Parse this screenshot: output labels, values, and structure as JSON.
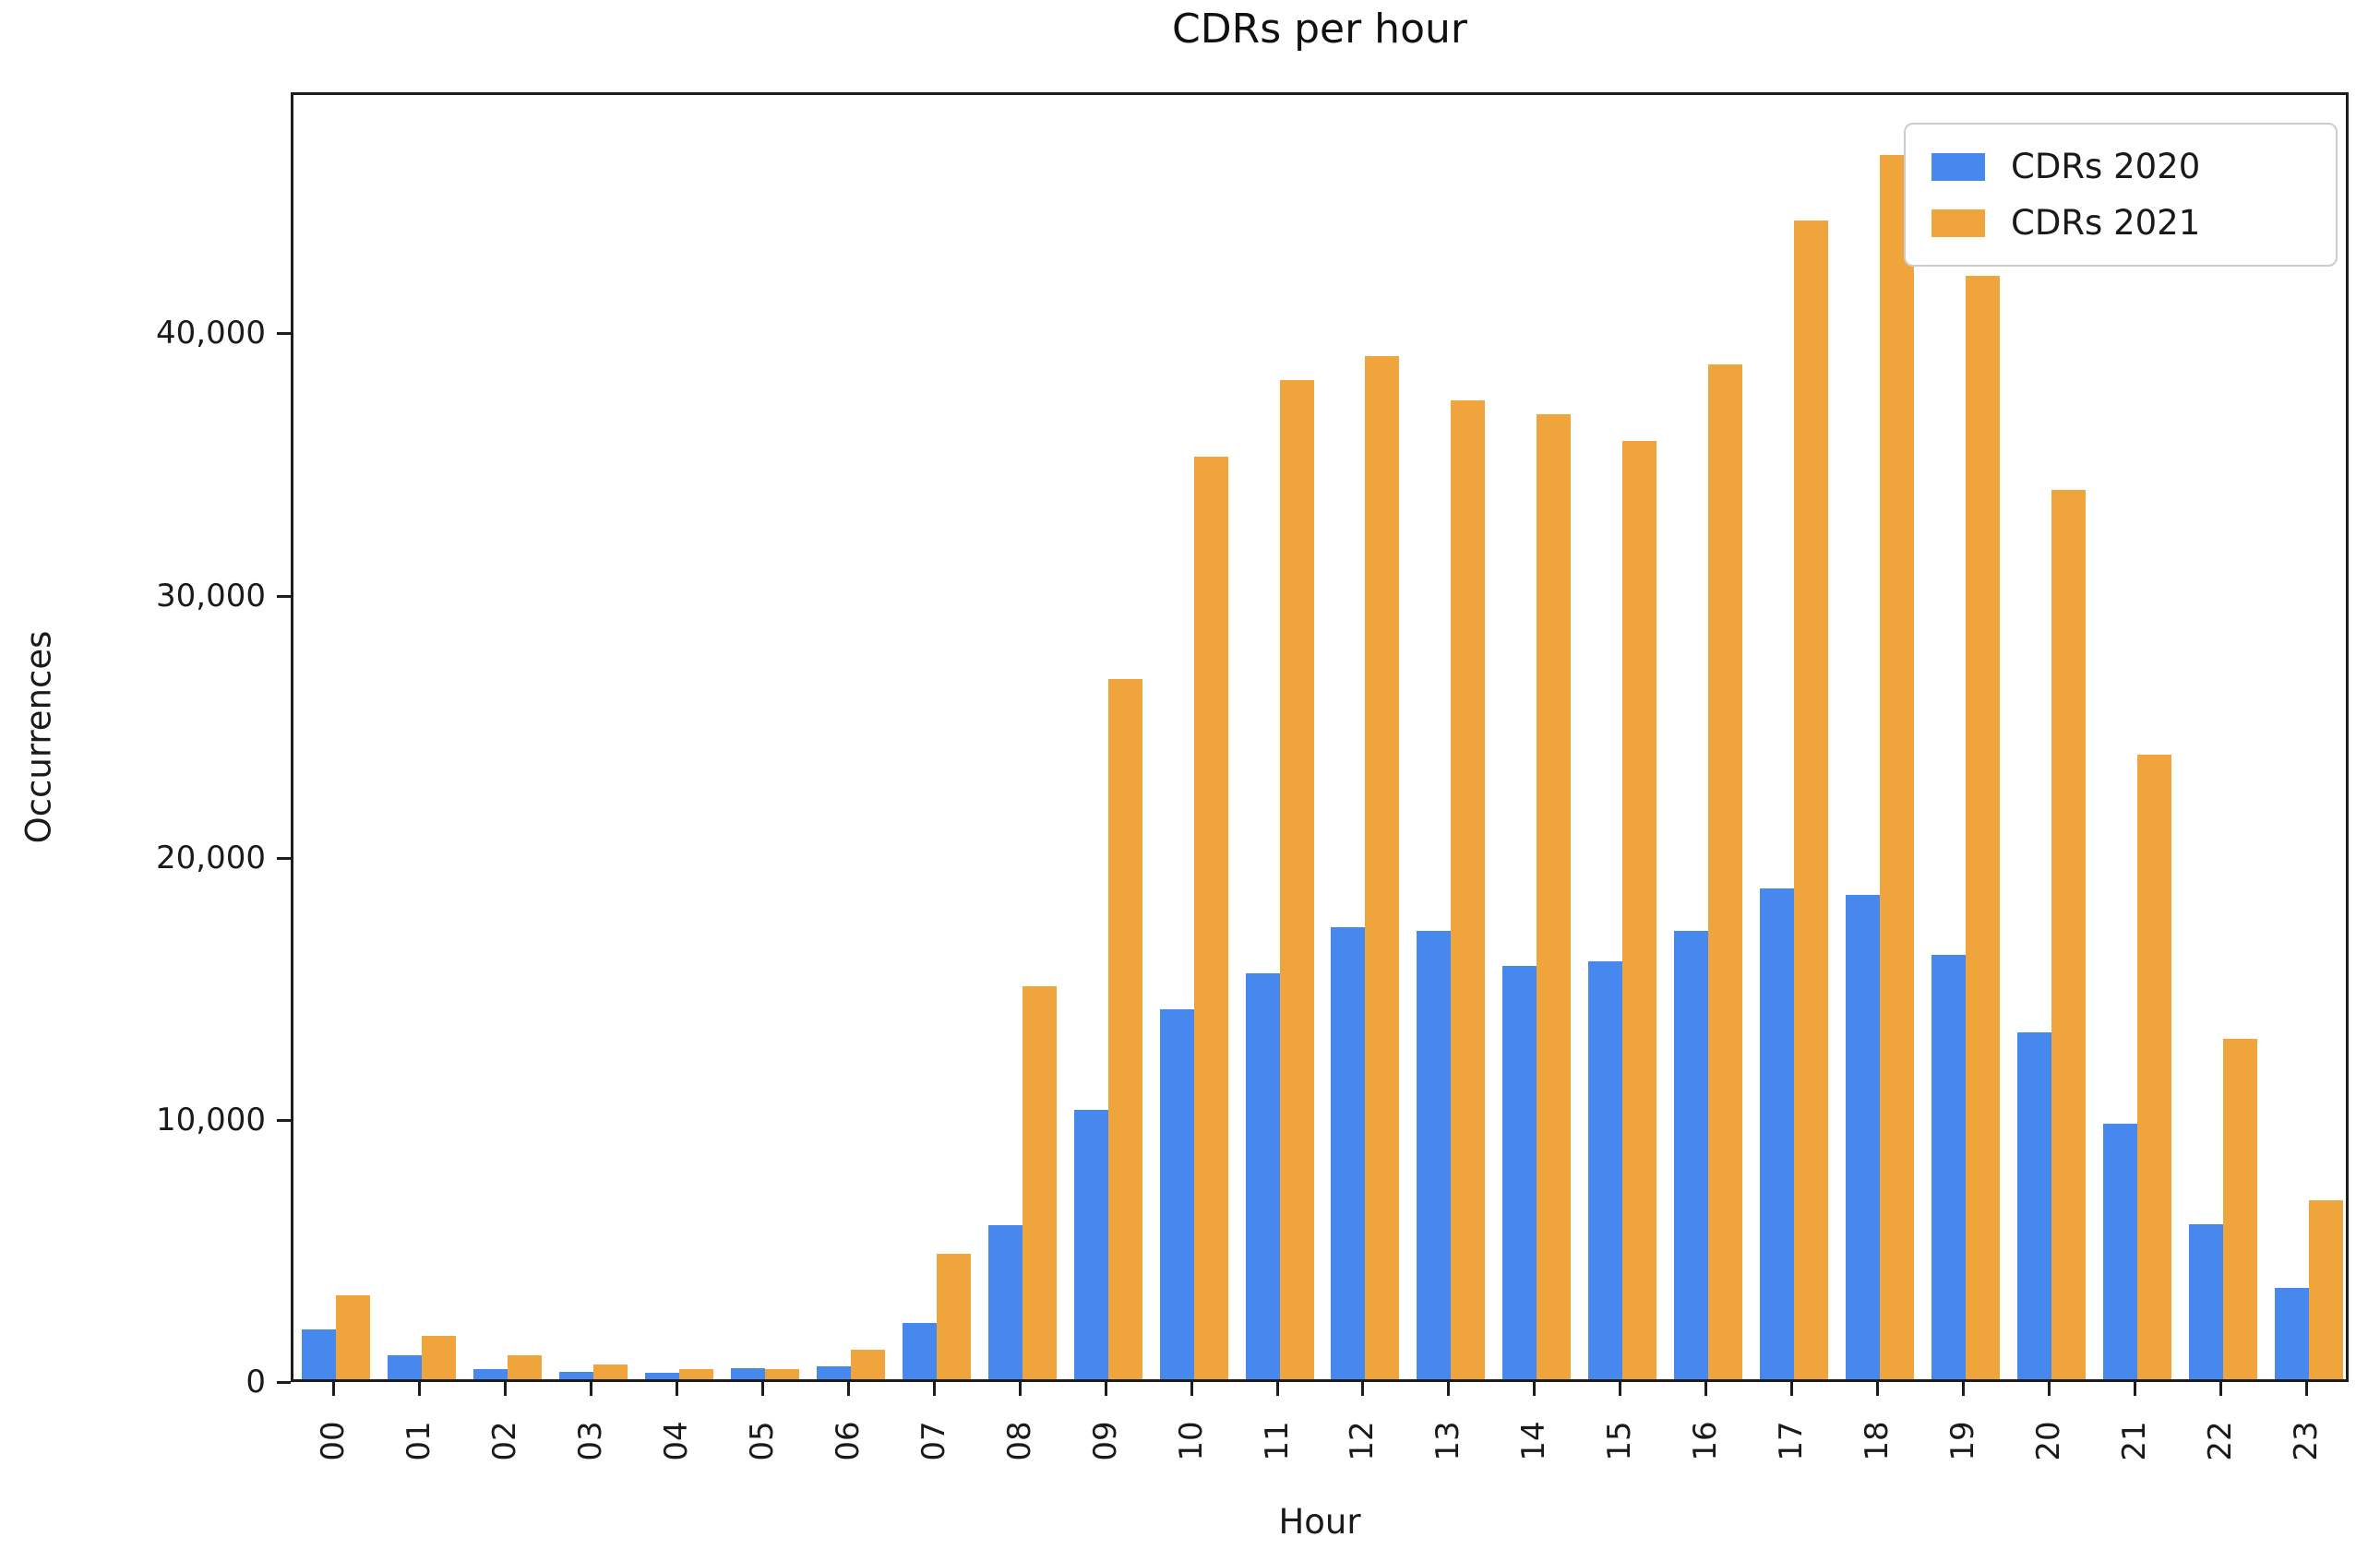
{
  "title": "CDRs per hour",
  "axes": {
    "x_label": "Hour",
    "y_label": "Occurrences",
    "y_tick_labels": [
      "0",
      "10,000",
      "20,000",
      "30,000",
      "40,000"
    ]
  },
  "legend": {
    "items": [
      {
        "label": "CDRs 2020",
        "color": "#4788ee"
      },
      {
        "label": "CDRs 2021",
        "color": "#efa53c"
      }
    ]
  },
  "colors": {
    "bar_2020": "#4788ee",
    "bar_2021": "#efa53c",
    "axis": "#1c1c1c",
    "legend_border": "#cccccc",
    "background": "#ffffff"
  },
  "chart_data": {
    "type": "bar",
    "title": "CDRs per hour",
    "xlabel": "Hour",
    "ylabel": "Occurrences",
    "categories": [
      "00",
      "01",
      "02",
      "03",
      "04",
      "05",
      "06",
      "07",
      "08",
      "09",
      "10",
      "11",
      "12",
      "13",
      "14",
      "15",
      "16",
      "17",
      "18",
      "19",
      "20",
      "21",
      "22",
      "23"
    ],
    "series": [
      {
        "name": "CDRs 2020",
        "color": "#4788ee",
        "values": [
          1900,
          900,
          400,
          270,
          260,
          430,
          500,
          2150,
          5860,
          10270,
          14100,
          15500,
          17250,
          17100,
          15750,
          15940,
          17100,
          18720,
          18490,
          16200,
          13250,
          9750,
          5910,
          3490
        ]
      },
      {
        "name": "CDRs 2021",
        "color": "#efa53c",
        "values": [
          3200,
          1650,
          900,
          550,
          400,
          370,
          1130,
          4800,
          15000,
          26700,
          35180,
          38100,
          39020,
          37330,
          36800,
          35780,
          38700,
          44200,
          46700,
          42100,
          33930,
          23840,
          13000,
          6830
        ]
      }
    ],
    "ylim": [
      0,
      49200
    ],
    "y_tick_values": [
      0,
      10000,
      20000,
      30000,
      40000
    ],
    "x_tick_rotation": 90,
    "grid": false,
    "legend_position": "upper right"
  }
}
